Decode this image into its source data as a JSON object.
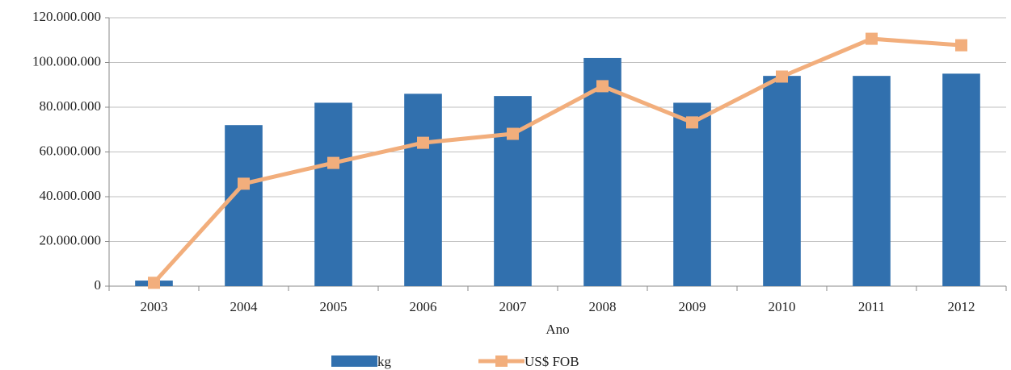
{
  "chart_data": {
    "type": "bar-line",
    "x_label": "Ano",
    "categories": [
      "2003",
      "2004",
      "2005",
      "2006",
      "2007",
      "2008",
      "2009",
      "2010",
      "2011",
      "2012"
    ],
    "series": [
      {
        "name": "kg",
        "type": "bar",
        "color": "#3170ae",
        "values": [
          2500000,
          72000000,
          82000000,
          86000000,
          85000000,
          102000000,
          82000000,
          94000000,
          94000000,
          95000000
        ]
      },
      {
        "name": "US$ FOB",
        "type": "line",
        "color": "#f2ae7c",
        "values": [
          1500000,
          45800000,
          55100000,
          64100000,
          68100000,
          89400000,
          73200000,
          93700000,
          110600000,
          107700000
        ]
      }
    ],
    "ylim": [
      0,
      120000000
    ],
    "yticks": [
      0,
      {
        "value": 20000000,
        "label": "20.000.000"
      },
      {
        "value": 40000000,
        "label": "40.000.000"
      },
      {
        "value": 60000000,
        "label": "60.000.000"
      },
      {
        "value": 80000000,
        "label": "80.000.000"
      },
      {
        "value": 100000000,
        "label": "100.000.000"
      },
      {
        "value": 120000000,
        "label": "120.000.000"
      }
    ],
    "grid": true,
    "legend": "bottom"
  }
}
